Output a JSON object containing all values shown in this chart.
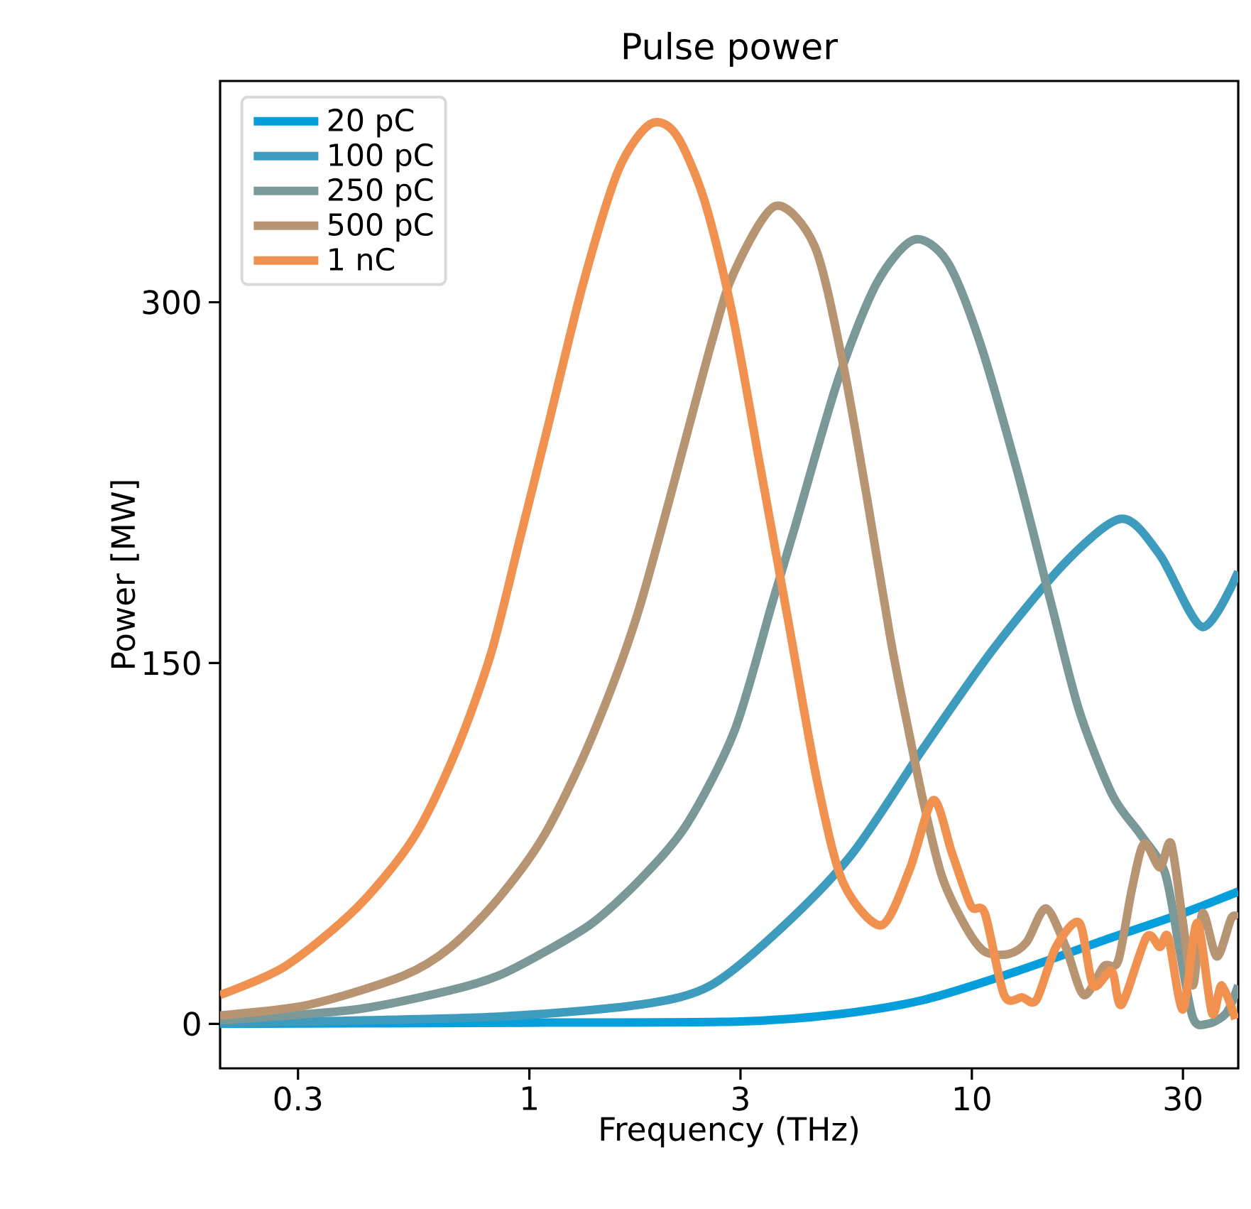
{
  "chart_data": {
    "type": "line",
    "title": "Pulse power",
    "xlabel": "Frequency (THz)",
    "ylabel": "Power [MW]",
    "log": "x",
    "xlim": [
      0.2,
      40
    ],
    "ylim": [
      -18.5,
      392
    ],
    "xticks": [
      0.3,
      1,
      3,
      10,
      30
    ],
    "yticks": [
      0,
      150,
      300
    ],
    "grid": false,
    "legend": "top left",
    "marker": "none",
    "line_style": "solid",
    "series": [
      {
        "name": "20 pC",
        "color": "#069fdb",
        "x": [
          0.2,
          1,
          3,
          5,
          7.8,
          12.7,
          20.8,
          30,
          40
        ],
        "values": [
          0,
          0.5,
          1,
          4,
          10,
          22,
          36,
          46,
          55
        ]
      },
      {
        "name": "100 pC",
        "color": "#3d9bbd",
        "x": [
          0.2,
          0.318,
          0.85,
          1.78,
          2.57,
          3.72,
          5.38,
          7.8,
          11.2,
          16.3,
          21.8,
          26.6,
          33.2,
          40
        ],
        "values": [
          0.3,
          1,
          3,
          8,
          16,
          40,
          71,
          115,
          156,
          192,
          210,
          195,
          165,
          188
        ]
      },
      {
        "name": "250 pC",
        "color": "#7a9898",
        "x": [
          0.2,
          0.406,
          0.665,
          0.85,
          1.085,
          1.39,
          1.78,
          2.27,
          2.91,
          3.54,
          3.99,
          4.99,
          6.1,
          7.4,
          8.79,
          10.4,
          12.7,
          15.1,
          17.5,
          20.8,
          24.0,
          27.3,
          29.4,
          31.6,
          34.1,
          37.6,
          40
        ],
        "values": [
          1.5,
          6,
          14,
          20,
          30,
          42,
          60,
          83,
          122,
          175,
          207,
          268,
          308,
          326,
          317,
          284,
          229,
          175,
          130,
          95,
          79,
          63,
          32,
          2.5,
          0,
          4.5,
          16
        ]
      },
      {
        "name": "500 pC",
        "color": "#b89572",
        "x": [
          0.2,
          0.318,
          0.519,
          0.665,
          0.85,
          1.085,
          1.39,
          1.78,
          2.57,
          2.91,
          3.6,
          4.42,
          5.12,
          5.79,
          6.55,
          7.23,
          7.8,
          8.57,
          9.71,
          10.7,
          12.1,
          13.3,
          14.7,
          16.3,
          17.9,
          19.9,
          21.4,
          23.0,
          24.5,
          26.6,
          28.2,
          30.0,
          31.6,
          33.2,
          35.8,
          38.6,
          40
        ],
        "values": [
          3.5,
          8,
          20,
          32,
          52,
          79,
          120,
          174,
          282,
          313,
          340,
          323,
          274,
          219,
          160,
          120,
          91,
          61,
          40,
          30,
          29,
          34,
          48,
          32,
          12,
          24,
          26,
          56,
          75,
          65,
          75,
          42,
          16,
          46,
          28,
          44,
          44
        ]
      },
      {
        "name": "1 nC",
        "color": "#f0914f",
        "x": [
          0.2,
          0.281,
          0.406,
          0.546,
          0.681,
          0.819,
          0.95,
          1.1,
          1.324,
          1.59,
          1.873,
          2.14,
          2.48,
          2.87,
          3.33,
          3.86,
          4.47,
          5.11,
          6.24,
          7.23,
          8.18,
          9.02,
          9.96,
          10.7,
          11.83,
          13.0,
          14.0,
          15.5,
          17.5,
          18.8,
          20.7,
          21.8,
          24.8,
          26.6,
          27.8,
          30.0,
          32.3,
          34.9,
          36.7,
          39.4
        ],
        "values": [
          12,
          24,
          48,
          77,
          113,
          154,
          201,
          248,
          308,
          355,
          374,
          370,
          343,
          296,
          231,
          166,
          101,
          59,
          41,
          64,
          93,
          71,
          49,
          46,
          12,
          11,
          10,
          32,
          42,
          16,
          22,
          8,
          36,
          32,
          36,
          6,
          42,
          4.5,
          16,
          2
        ]
      }
    ]
  }
}
